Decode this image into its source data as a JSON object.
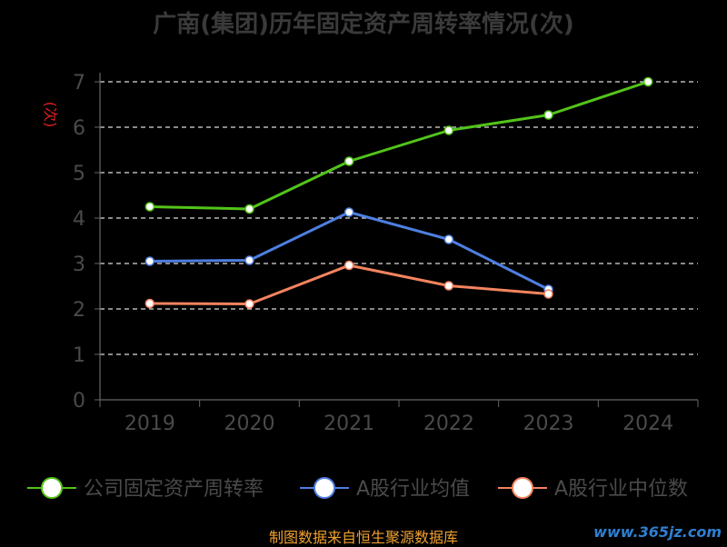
{
  "chart_data": {
    "type": "line",
    "title": "广南(集团)历年固定资产周转率情况(次)",
    "ylabel": "(次)",
    "categories": [
      "2019",
      "2020",
      "2021",
      "2022",
      "2023",
      "2024"
    ],
    "ylim": [
      0,
      7
    ],
    "yticks": [
      "0",
      "1",
      "2",
      "3",
      "4",
      "5",
      "6",
      "7"
    ],
    "grid": true,
    "legend_position": "bottom",
    "series": [
      {
        "name": "公司固定资产周转率",
        "color": "#52c41a",
        "values": [
          4.25,
          4.2,
          5.25,
          5.93,
          6.27,
          7.0
        ]
      },
      {
        "name": "A股行业均值",
        "color": "#4e7fe0",
        "values": [
          3.05,
          3.07,
          4.13,
          3.53,
          2.43,
          null
        ]
      },
      {
        "name": "A股行业中位数",
        "color": "#f4845f",
        "values": [
          2.12,
          2.11,
          2.96,
          2.51,
          2.33,
          null
        ]
      }
    ]
  },
  "footer": {
    "source": "制图数据来自恒生聚源数据库",
    "watermark": "www.365jz.com"
  }
}
